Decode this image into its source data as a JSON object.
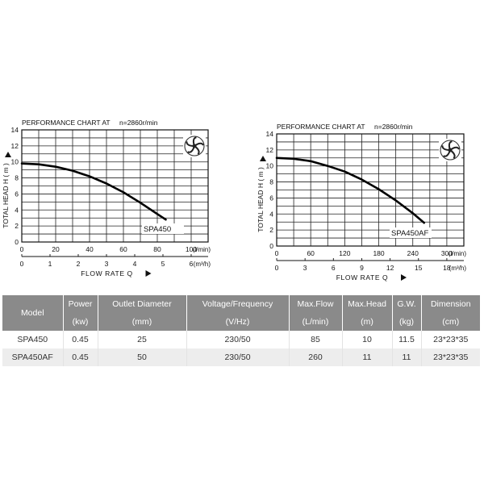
{
  "chart_data": [
    {
      "type": "line",
      "title": "PERFORMANCE CHART AT",
      "speed": "n=2860r/min",
      "ylabel": "TOTAL HEAD H ( m )",
      "xlabel": "FLOW RATE Q",
      "x_unit": "(l/min)",
      "x2_unit": "(m³/h)",
      "ylim": [
        0,
        14
      ],
      "xlim": [
        0,
        110
      ],
      "y_ticks": [
        "0",
        "2",
        "4",
        "6",
        "8",
        "10",
        "12",
        "14"
      ],
      "x_ticks": [
        "0",
        "20",
        "40",
        "60",
        "80",
        "100"
      ],
      "x_ticks_values": [
        0,
        20,
        40,
        60,
        80,
        100
      ],
      "x2_ticks": [
        "0",
        "1",
        "2",
        "3",
        "4",
        "5",
        "6"
      ],
      "x2_ticks_values": [
        0,
        16.67,
        33.33,
        50,
        66.67,
        83.33,
        100
      ],
      "series": [
        {
          "name": "SPA450",
          "x": [
            0,
            10,
            20,
            30,
            40,
            50,
            60,
            70,
            80,
            85
          ],
          "y": [
            9.8,
            9.7,
            9.4,
            8.9,
            8.2,
            7.3,
            6.2,
            4.9,
            3.5,
            2.8
          ]
        }
      ],
      "grid": true
    },
    {
      "type": "line",
      "title": "PERFORMANCE CHART AT",
      "speed": "n=2860r/min",
      "ylabel": "TOTAL HEAD H ( m )",
      "xlabel": "FLOW RATE Q",
      "x_unit": "(l/min)",
      "x2_unit": "(m³/h)",
      "ylim": [
        0,
        14
      ],
      "xlim": [
        0,
        330
      ],
      "y_ticks": [
        "0",
        "2",
        "4",
        "6",
        "8",
        "10",
        "12",
        "14"
      ],
      "x_ticks": [
        "0",
        "60",
        "120",
        "180",
        "240",
        "300"
      ],
      "x_ticks_values": [
        0,
        60,
        120,
        180,
        240,
        300
      ],
      "x2_ticks": [
        "0",
        "3",
        "6",
        "9",
        "12",
        "15",
        "18"
      ],
      "x2_ticks_values": [
        0,
        50,
        100,
        150,
        200,
        250,
        300
      ],
      "series": [
        {
          "name": "SPA450AF",
          "x": [
            0,
            30,
            60,
            90,
            120,
            150,
            180,
            210,
            240,
            260
          ],
          "y": [
            11,
            10.9,
            10.6,
            10,
            9.3,
            8.3,
            7.1,
            5.7,
            4.1,
            2.9
          ]
        }
      ],
      "grid": true
    }
  ],
  "table": {
    "headers": [
      [
        "Model",
        ""
      ],
      [
        "Power",
        "(kw)"
      ],
      [
        "Outlet Diameter",
        "(mm)"
      ],
      [
        "Voltage/Frequency",
        "(V/Hz)"
      ],
      [
        "Max.Flow",
        "(L/min)"
      ],
      [
        "Max.Head",
        "(m)"
      ],
      [
        "G.W.",
        "(kg)"
      ],
      [
        "Dimension",
        "(cm)"
      ]
    ],
    "rows": [
      [
        "SPA450",
        "0.45",
        "25",
        "230/50",
        "85",
        "10",
        "11.5",
        "23*23*35"
      ],
      [
        "SPA450AF",
        "0.45",
        "50",
        "230/50",
        "260",
        "11",
        "11",
        "23*23*35"
      ]
    ]
  }
}
